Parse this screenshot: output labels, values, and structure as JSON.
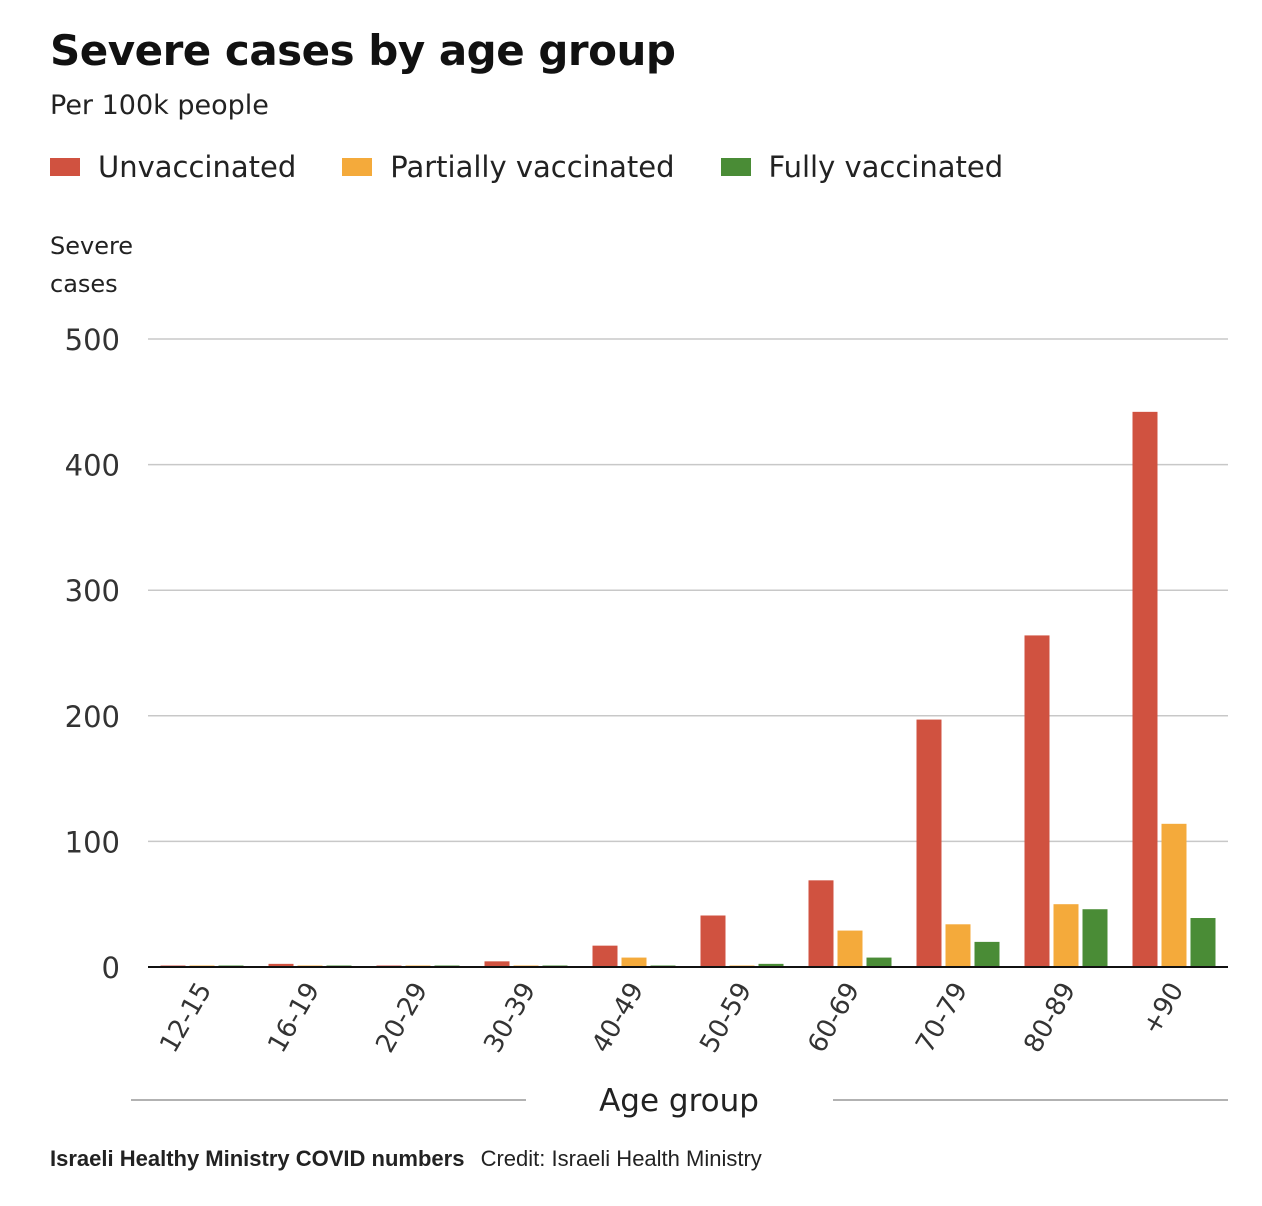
{
  "chart_data": {
    "type": "bar",
    "title": "Severe cases by age group",
    "subtitle": "Per 100k people",
    "ylabel_lines": [
      "Severe",
      "cases"
    ],
    "xlabel": "Age group",
    "categories": [
      "12-15",
      "16-19",
      "20-29",
      "30-39",
      "40-49",
      "50-59",
      "60-69",
      "70-79",
      "80-89",
      "+90"
    ],
    "series": [
      {
        "name": "Unvaccinated",
        "color": "#d05240",
        "values": [
          0.3,
          2.5,
          0.4,
          4.5,
          17,
          41,
          69,
          197,
          264,
          442
        ]
      },
      {
        "name": "Partially vaccinated",
        "color": "#f4aa3b",
        "values": [
          0.2,
          0.3,
          0.3,
          0.5,
          7.5,
          0.5,
          29,
          34,
          50,
          114
        ]
      },
      {
        "name": "Fully vaccinated",
        "color": "#4a8c36",
        "values": [
          0.1,
          0.1,
          0.1,
          0.3,
          0.4,
          2.5,
          7.5,
          20,
          46,
          39
        ]
      }
    ],
    "yticks": [
      0,
      100,
      200,
      300,
      400,
      500
    ],
    "ylim": [
      0,
      500
    ],
    "grid": true,
    "legend_position": "top-left"
  },
  "footer": {
    "source": "Israeli Healthy Ministry COVID numbers",
    "credit": "Credit: Israeli Health Ministry"
  }
}
